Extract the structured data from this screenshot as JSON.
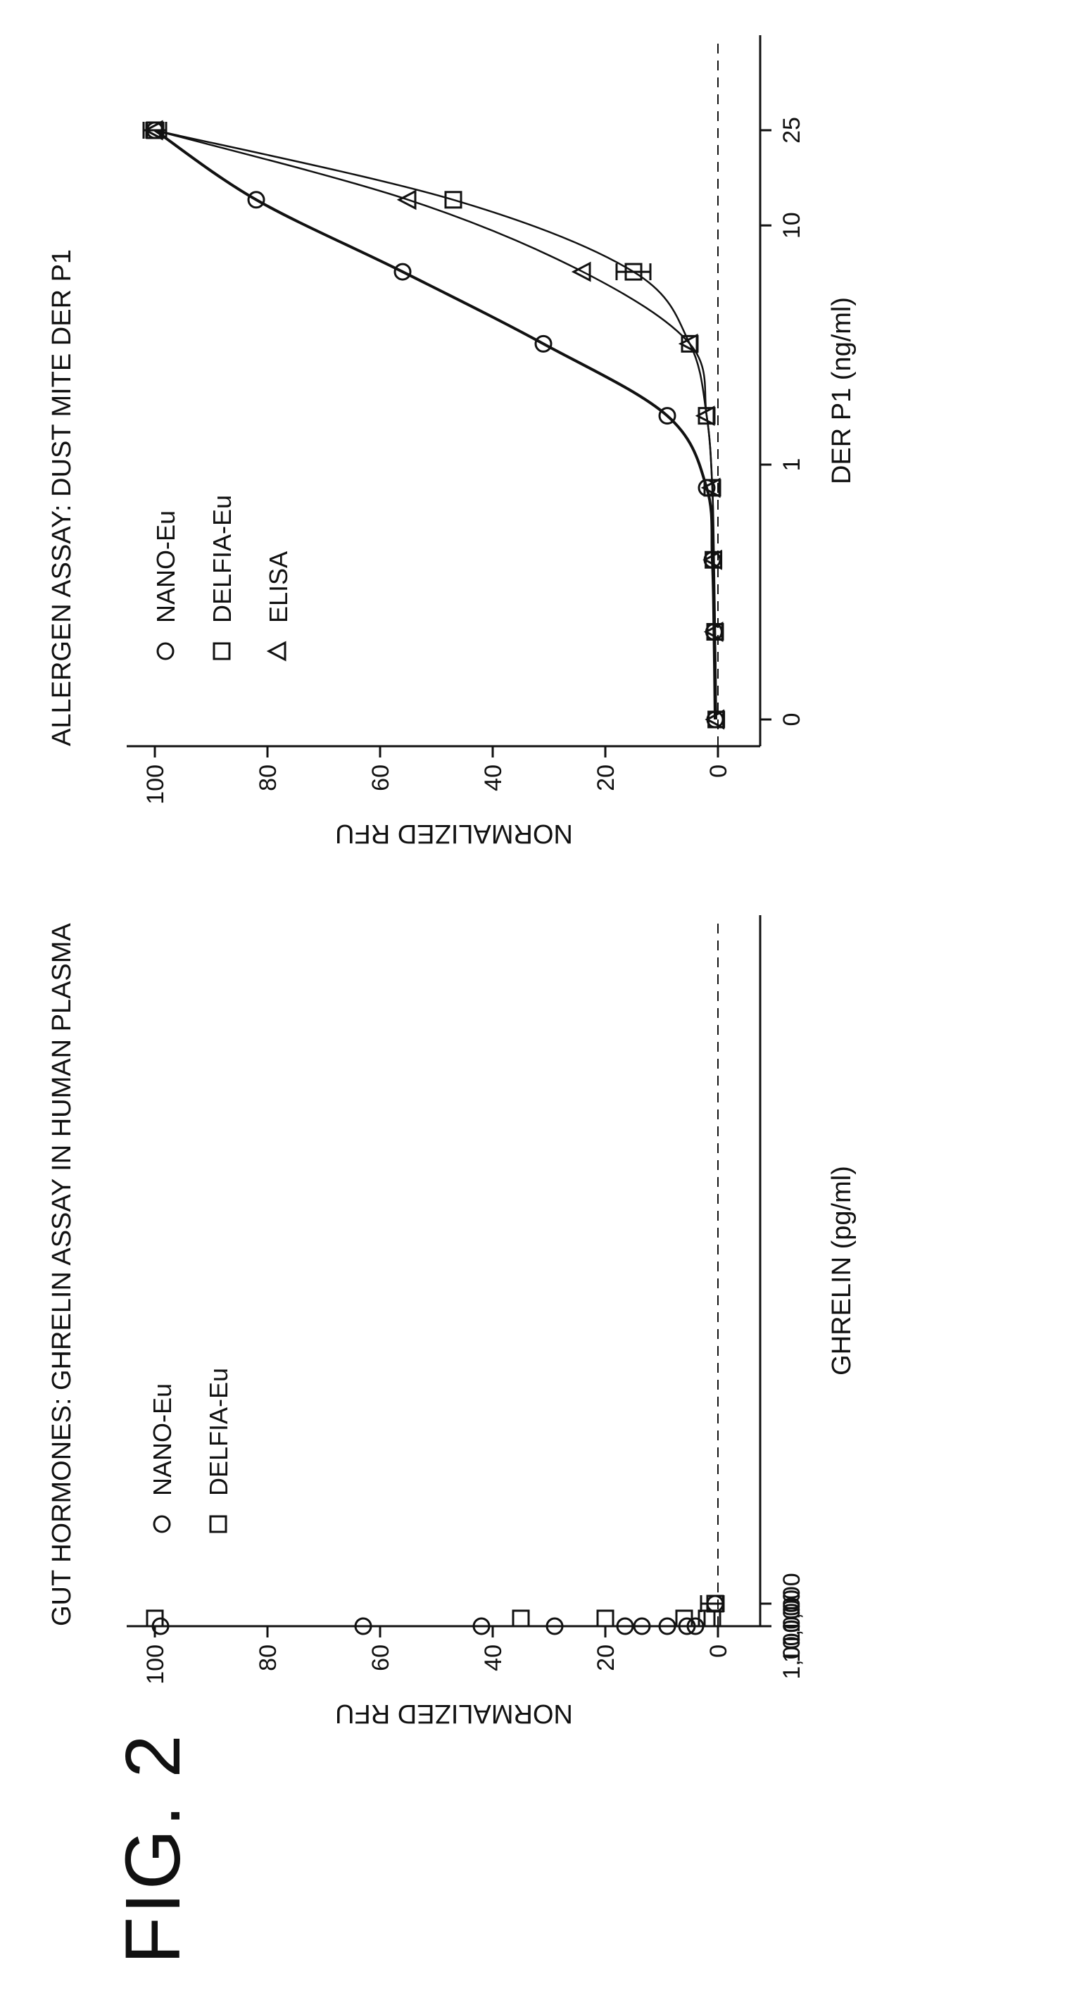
{
  "figure_label": "FIG. 2",
  "chart_data": [
    {
      "type": "scatter",
      "title": "GUT HORMONES: GHRELIN ASSAY IN HUMAN PLASMA",
      "xlabel": "GHRELIN (pg/ml)",
      "ylabel": "NORMALIZED RFU",
      "x_scale": "log",
      "x_ticks": [
        "0",
        "1",
        "100",
        "10,000",
        "1,000,000"
      ],
      "y_ticks": [
        "0",
        "20",
        "40",
        "60",
        "80",
        "100"
      ],
      "ylim": [
        0,
        100
      ],
      "legend_position": "top-left",
      "baseline_y": 0,
      "series": [
        {
          "name": "NANO-Eu",
          "marker": "circle",
          "points": [
            {
              "x": "0",
              "y": 0.5,
              "err": 2.5
            },
            {
              "x": 5,
              "y": 4
            },
            {
              "x": 10,
              "y": 5.5,
              "err": 2.0
            },
            {
              "x": 20,
              "y": 9
            },
            {
              "x": 40,
              "y": 13.5
            },
            {
              "x": 80,
              "y": 16.5,
              "err": 2.5
            },
            {
              "x": 150,
              "y": 29
            },
            {
              "x": 300,
              "y": 42,
              "err": 3.0
            },
            {
              "x": 600,
              "y": 63,
              "err": 1.5
            },
            {
              "x": 1300,
              "y": 99,
              "err": 1.5
            }
          ]
        },
        {
          "name": "DELFIA-Eu",
          "marker": "square",
          "points": [
            {
              "x": "0",
              "y": 0.5
            },
            {
              "x": 10,
              "y": 1
            },
            {
              "x": 100,
              "y": 2
            },
            {
              "x": 1000,
              "y": 6
            },
            {
              "x": 10000,
              "y": 20
            },
            {
              "x": 80000,
              "y": 35
            },
            {
              "x": 1000000,
              "y": 100
            }
          ]
        }
      ]
    },
    {
      "type": "scatter",
      "title": "ALLERGEN ASSAY: DUST MITE DER P1",
      "xlabel": "DER P1 (ng/ml)",
      "ylabel": "NORMALIZED RFU",
      "x_scale": "log",
      "x_ticks": [
        "0",
        "1",
        "10",
        "25"
      ],
      "y_ticks": [
        "0",
        "20",
        "40",
        "60",
        "80",
        "100"
      ],
      "ylim": [
        0,
        100
      ],
      "legend_position": "top-left",
      "baseline_y": 0,
      "series": [
        {
          "name": "NANO-Eu",
          "marker": "circle",
          "points": [
            {
              "x": "0",
              "y": 0.5
            },
            {
              "x": 0.2,
              "y": 0.7
            },
            {
              "x": 0.4,
              "y": 1
            },
            {
              "x": 0.8,
              "y": 2
            },
            {
              "x": 1.6,
              "y": 9
            },
            {
              "x": 3.2,
              "y": 31
            },
            {
              "x": 6.4,
              "y": 56
            },
            {
              "x": 12.8,
              "y": 82
            },
            {
              "x": 25,
              "y": 100,
              "err": 1.5
            }
          ]
        },
        {
          "name": "DELFIA-Eu",
          "marker": "square",
          "points": [
            {
              "x": "0",
              "y": 0.3
            },
            {
              "x": 0.2,
              "y": 0.5
            },
            {
              "x": 0.4,
              "y": 0.8
            },
            {
              "x": 0.8,
              "y": 1
            },
            {
              "x": 1.6,
              "y": 2
            },
            {
              "x": 3.2,
              "y": 5
            },
            {
              "x": 6.4,
              "y": 15,
              "err": 3.0
            },
            {
              "x": 12.8,
              "y": 47
            },
            {
              "x": 25,
              "y": 100,
              "err": 2.0
            }
          ]
        },
        {
          "name": "ELISA",
          "marker": "triangle",
          "points": [
            {
              "x": "0",
              "y": 0.3
            },
            {
              "x": 0.2,
              "y": 0.5
            },
            {
              "x": 0.4,
              "y": 0.7
            },
            {
              "x": 0.8,
              "y": 1
            },
            {
              "x": 1.6,
              "y": 2
            },
            {
              "x": 3.2,
              "y": 5
            },
            {
              "x": 6.4,
              "y": 24
            },
            {
              "x": 12.8,
              "y": 55
            },
            {
              "x": 25,
              "y": 100
            }
          ]
        }
      ]
    }
  ]
}
